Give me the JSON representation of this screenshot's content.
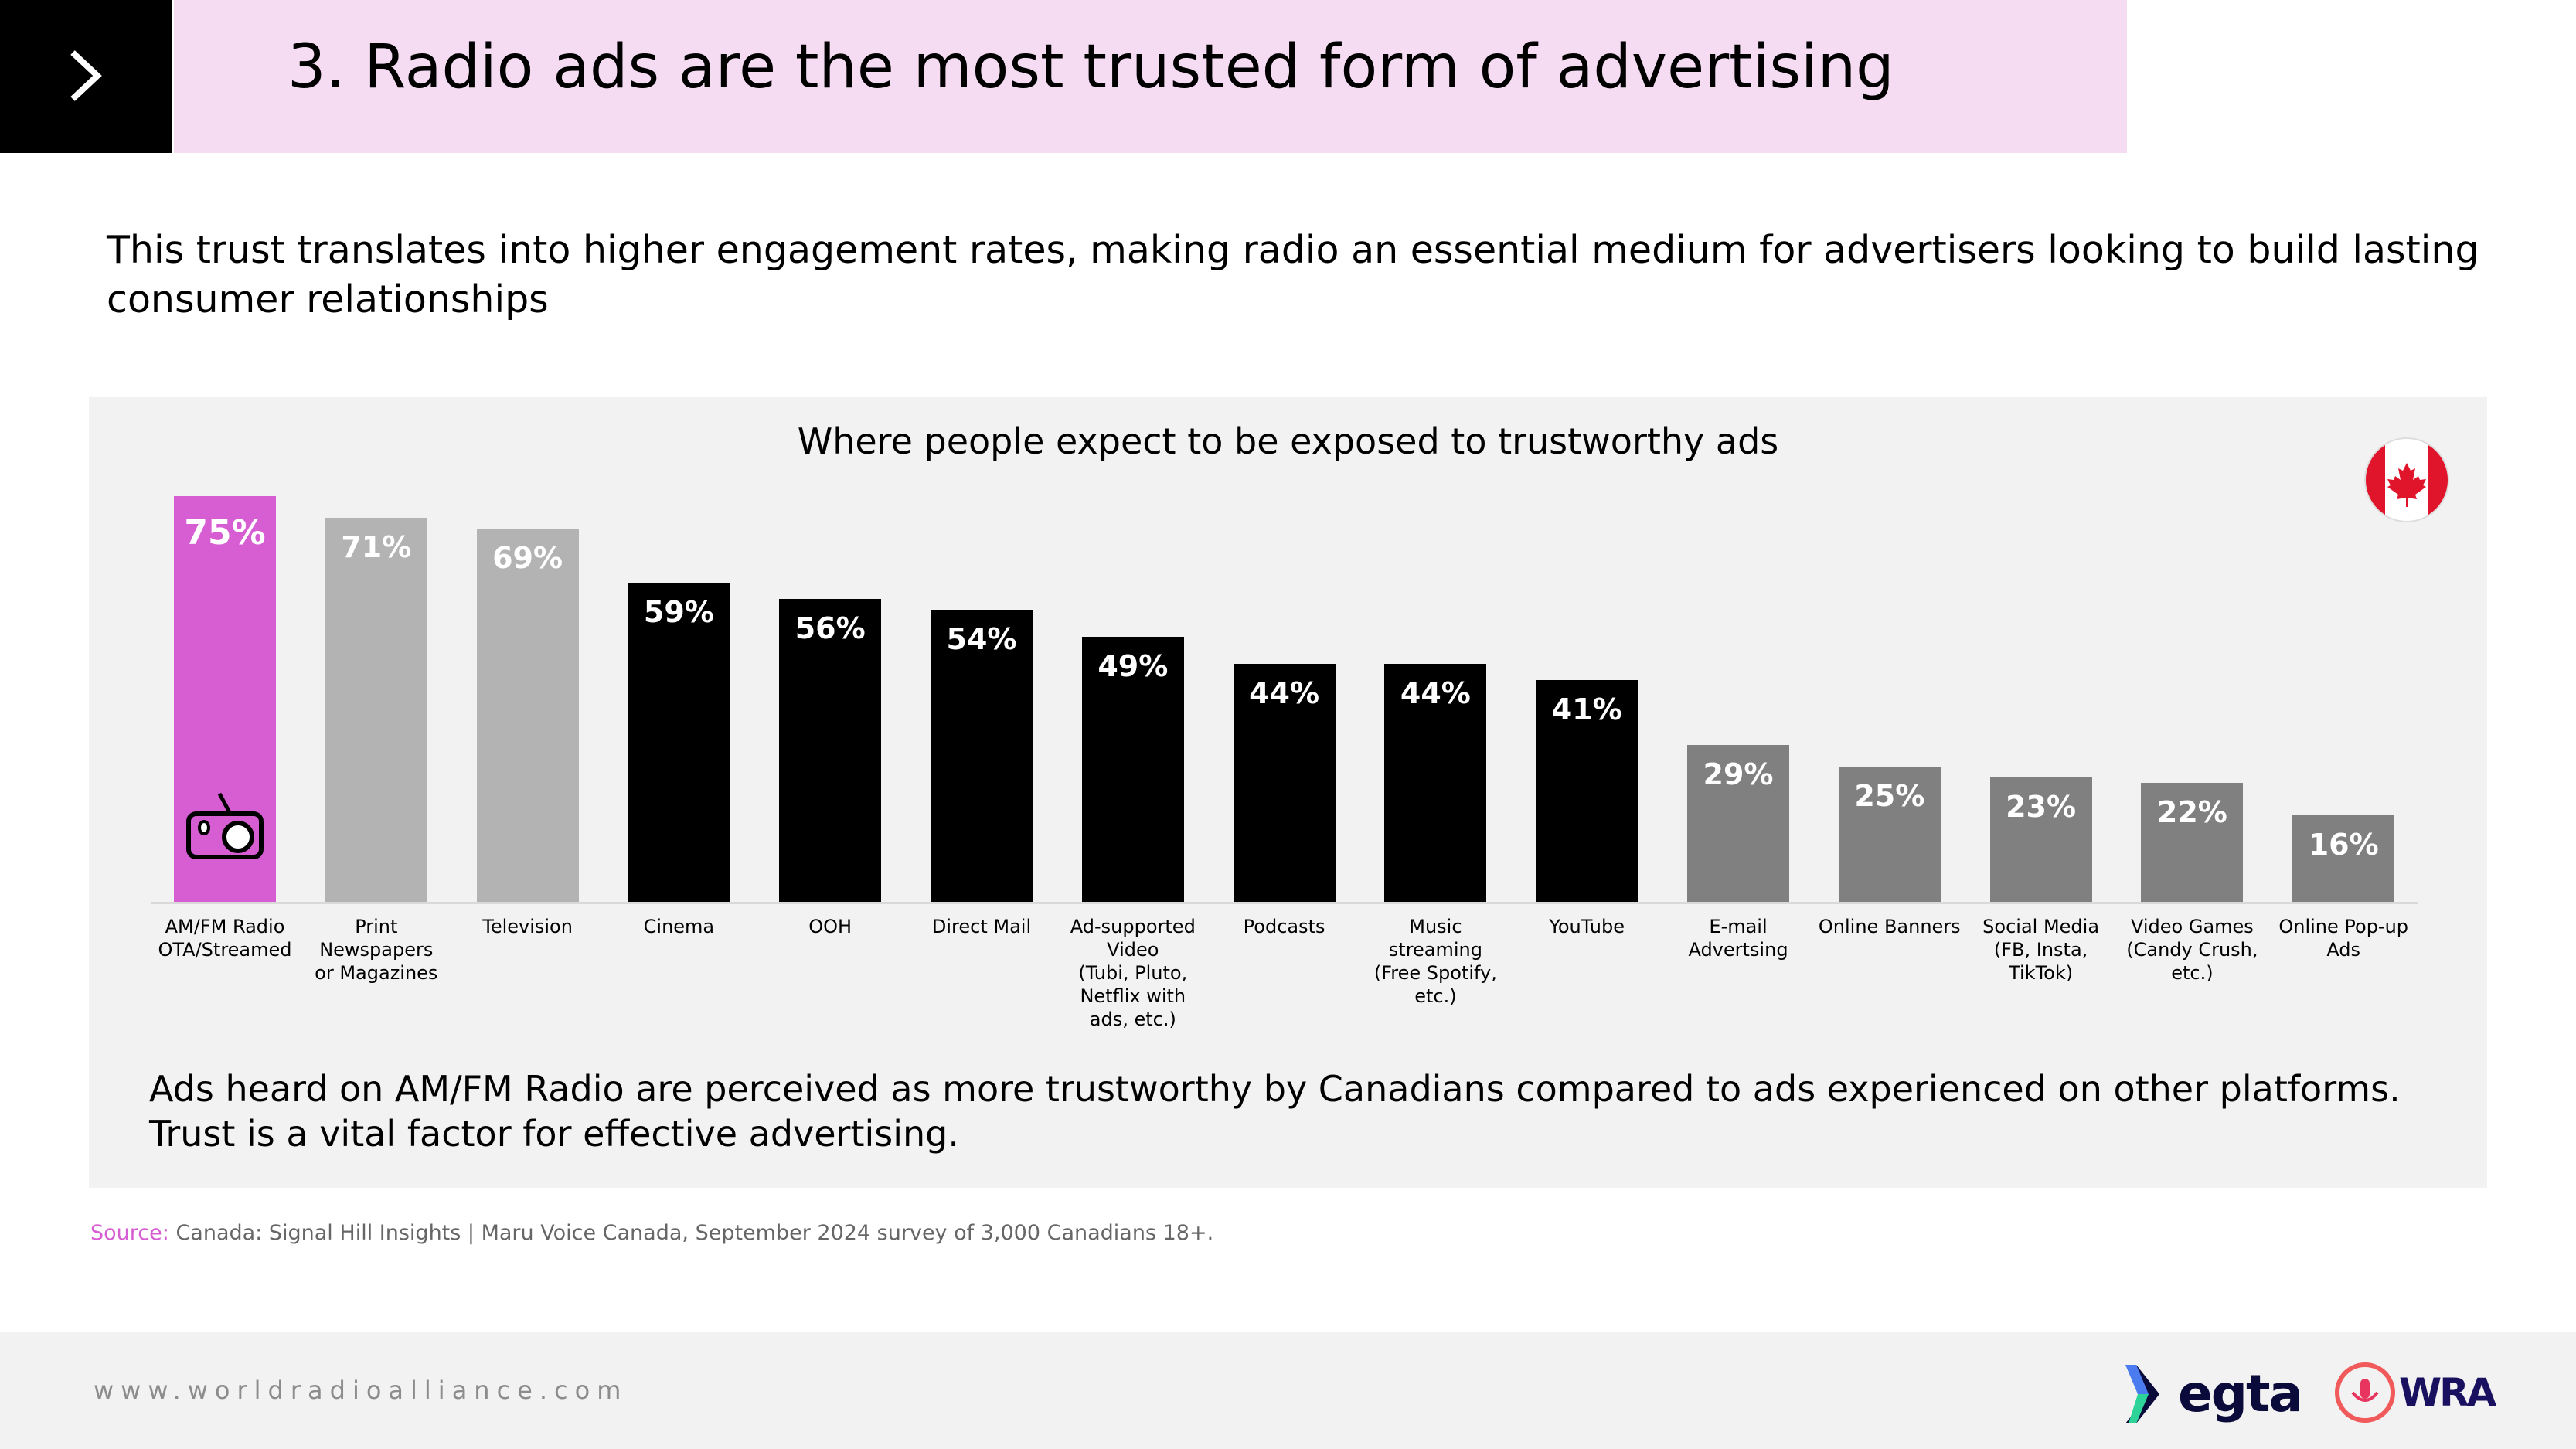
{
  "header": {
    "title": "3. Radio ads are the most trusted form of advertising",
    "icon": "chevron-right-icon"
  },
  "subtitle": "This trust translates into higher engagement rates, making radio an essential medium for advertisers looking to build lasting consumer relationships",
  "chart_data": {
    "type": "bar",
    "title": "Where people expect to be exposed to trustworthy ads",
    "categories": [
      "AM/FM Radio\nOTA/Streamed",
      "Print\nNewspapers\nor Magazines",
      "Television",
      "Cinema",
      "OOH",
      "Direct Mail",
      "Ad-supported\nVideo\n(Tubi, Pluto,\nNetflix with\nads, etc.)",
      "Podcasts",
      "Music\nstreaming\n(Free Spotify,\netc.)",
      "YouTube",
      "E-mail\nAdvertsing",
      "Online Banners",
      "Social Media\n(FB, Insta,\nTikTok)",
      "Video Games\n(Candy Crush,\netc.)",
      "Online Pop-up\nAds"
    ],
    "values": [
      75,
      71,
      69,
      59,
      56,
      54,
      49,
      44,
      44,
      41,
      29,
      25,
      23,
      22,
      16
    ],
    "value_labels": [
      "75%",
      "71%",
      "69%",
      "59%",
      "56%",
      "54%",
      "49%",
      "44%",
      "44%",
      "41%",
      "29%",
      "25%",
      "23%",
      "22%",
      "16%"
    ],
    "colors": [
      "#d65dd2",
      "#b3b3b3",
      "#b3b3b3",
      "#000000",
      "#000000",
      "#000000",
      "#000000",
      "#000000",
      "#000000",
      "#000000",
      "#808080",
      "#808080",
      "#808080",
      "#808080",
      "#808080"
    ],
    "unit": "%",
    "ylim": [
      0,
      80
    ],
    "grid": false,
    "legend": "none"
  },
  "flag": "canada-flag-icon",
  "note": "Ads heard on AM/FM Radio are perceived as more trustworthy by Canadians compared to ads experienced on other platforms. Trust is a vital factor for effective advertising.",
  "source": {
    "label": "Source:",
    "country": "Canada:",
    "text": "Signal Hill Insights | Maru Voice Canada, September 2024 survey of 3,000 Canadians 18+."
  },
  "footer": {
    "url": "www.worldradioalliance.com",
    "logo1": "egta",
    "logo2": "WRA"
  }
}
